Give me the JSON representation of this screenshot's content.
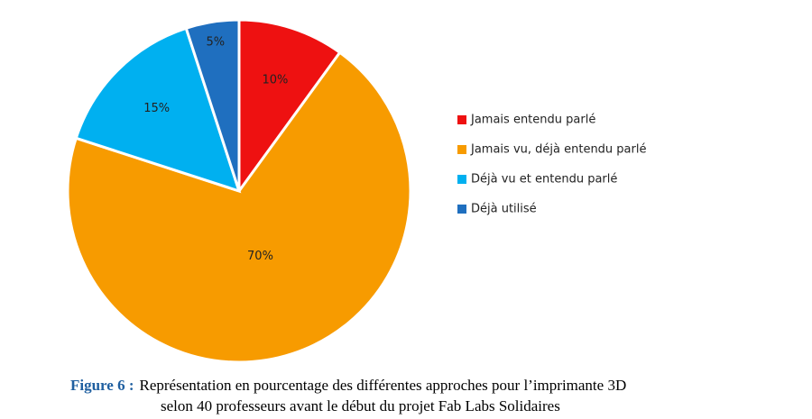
{
  "chart_data": {
    "type": "pie",
    "categories": [
      "Jamais entendu parlé",
      "Jamais vu, déjà entendu parlé",
      "Déjà vu et entendu parlé",
      "Déjà utilisé"
    ],
    "values": [
      10,
      70,
      15,
      5
    ],
    "value_labels": [
      "10%",
      "70%",
      "15%",
      "5%"
    ],
    "colors": [
      "#ee1111",
      "#f79b00",
      "#00b0f0",
      "#1f6fbf"
    ],
    "legend": "right",
    "caption_label": "Figure 6 :",
    "caption": [
      "Représentation en pourcentage des différentes approches pour l’imprimante 3D",
      "selon 40 professeurs avant le début du projet Fab Labs Solidaires"
    ]
  }
}
